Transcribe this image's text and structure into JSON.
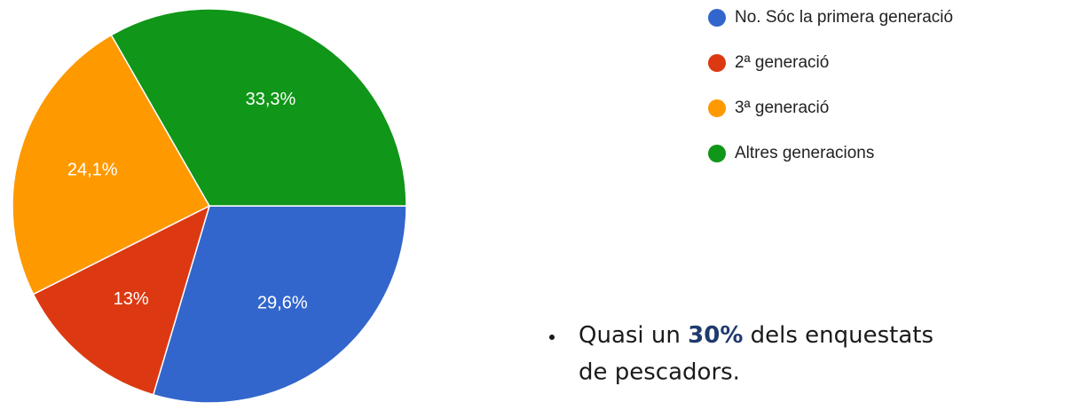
{
  "chart_data": {
    "type": "pie",
    "categories": [
      "No. Sóc la primera generació",
      "2ª generació",
      "3ª generació",
      "Altres generacions"
    ],
    "values": [
      29.6,
      13,
      24.1,
      33.3
    ],
    "value_labels": [
      "29,6%",
      "13%",
      "24,1%",
      "33,3%"
    ],
    "colors": [
      "#3366cc",
      "#dc3912",
      "#ff9900",
      "#109618"
    ],
    "legend": "right"
  },
  "note": {
    "parts": [
      "Quasi un ",
      "30%",
      " dels enquestats"
    ],
    "line2": "de pescadors."
  }
}
